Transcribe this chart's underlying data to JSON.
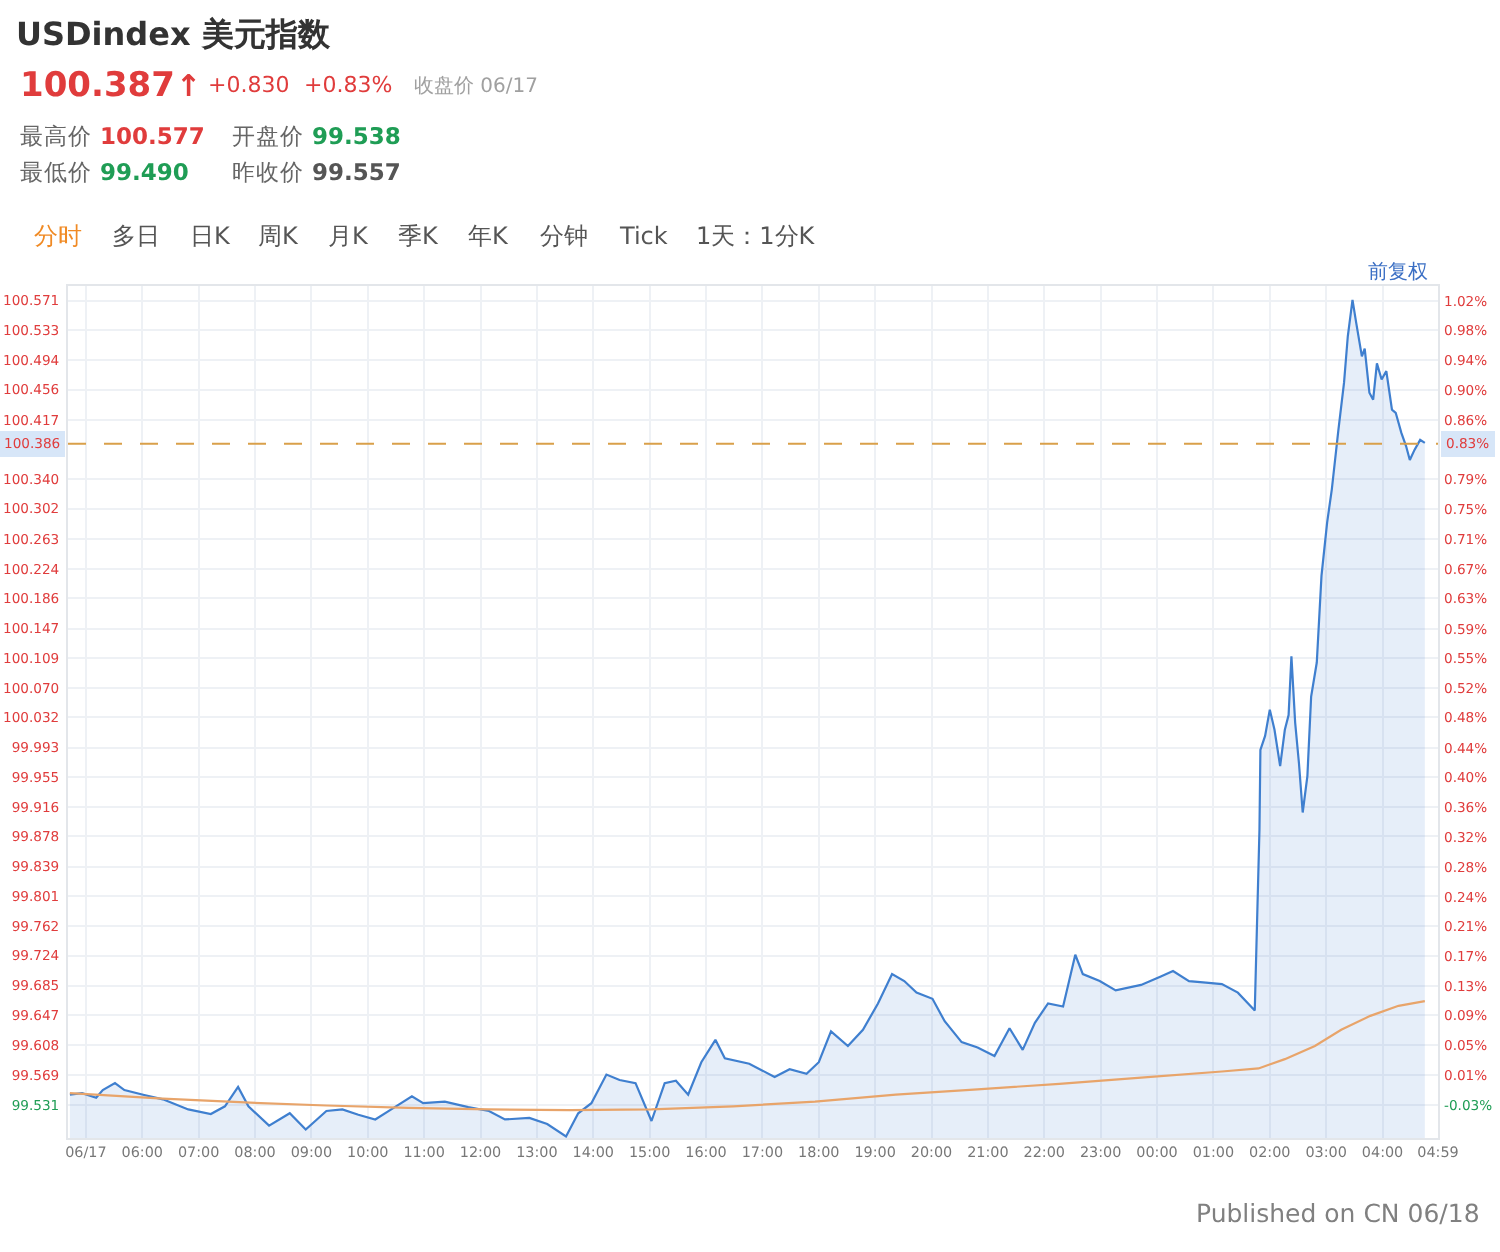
{
  "chart_data": {
    "type": "area",
    "title": "USDindex 美元指数",
    "series": [
      {
        "color": "#3f7fcf",
        "x": [
          "--06-17T04:43",
          "--06-17T04:56",
          "--06-17T05:11",
          "--06-17T05:18",
          "--06-17T05:31",
          "--06-17T05:41",
          "--06-17T06:01",
          "--06-17T06:22",
          "--06-17T06:49",
          "--06-17T07:13",
          "--06-17T07:28",
          "--06-17T07:42",
          "--06-17T07:53",
          "--06-17T08:15",
          "--06-17T08:37",
          "--06-17T08:54",
          "--06-17T09:16",
          "--06-17T09:33",
          "--06-17T09:50",
          "--06-17T10:08",
          "--06-17T10:25",
          "--06-17T10:47",
          "--06-17T10:59",
          "--06-17T11:22",
          "--06-17T11:47",
          "--06-17T12:09",
          "--06-17T12:26",
          "--06-17T12:52",
          "--06-17T13:11",
          "--06-17T13:31",
          "--06-17T13:44",
          "--06-17T13:58",
          "--06-17T14:14",
          "--06-17T14:28",
          "--06-17T14:45",
          "--06-17T15:02",
          "--06-17T15:16",
          "--06-17T15:28",
          "--06-17T15:41",
          "--06-17T15:55",
          "--06-17T16:10",
          "--06-17T16:20",
          "--06-17T16:46",
          "--06-17T17:13",
          "--06-17T17:29",
          "--06-17T17:47",
          "--06-17T18:00",
          "--06-17T18:13",
          "--06-17T18:31",
          "--06-17T18:47",
          "--06-17T19:03",
          "--06-17T19:18",
          "--06-17T19:31",
          "--06-17T19:44",
          "--06-17T20:01",
          "--06-17T20:14",
          "--06-17T20:32",
          "--06-17T20:49",
          "--06-17T21:07",
          "--06-17T21:23",
          "--06-17T21:37",
          "--06-17T21:50",
          "--06-17T22:04",
          "--06-17T22:20",
          "--06-17T22:33",
          "--06-17T22:41",
          "--06-17T22:59",
          "--06-17T23:16",
          "--06-17T23:43",
          "--06-18T00:04",
          "--06-18T00:17",
          "--06-18T00:34",
          "--06-18T00:52",
          "--06-18T01:09",
          "--06-18T01:26",
          "--06-18T01:44",
          "--06-18T01:49",
          "--06-18T01:50",
          "--06-18T01:55",
          "--06-18T02:00",
          "--06-18T02:05",
          "--06-18T02:11",
          "--06-18T02:16",
          "--06-18T02:20",
          "--06-18T02:23",
          "--06-18T02:27",
          "--06-18T02:31",
          "--06-18T02:35",
          "--06-18T02:40",
          "--06-18T02:44",
          "--06-18T02:50",
          "--06-18T02:55",
          "--06-18T03:01",
          "--06-18T03:06",
          "--06-18T03:13",
          "--06-18T03:19",
          "--06-18T03:23",
          "--06-18T03:28",
          "--06-18T03:32",
          "--06-18T03:38",
          "--06-18T03:41",
          "--06-18T03:46",
          "--06-18T03:50",
          "--06-18T03:54",
          "--06-18T03:59",
          "--06-18T04:04",
          "--06-18T04:10",
          "--06-18T04:14",
          "--06-18T04:20",
          "--06-18T04:25",
          "--06-18T04:29",
          "--06-18T04:34",
          "--06-18T04:40",
          "--06-18T04:45"
        ],
        "values": [
          99.544,
          99.546,
          99.54,
          99.55,
          99.559,
          99.55,
          99.544,
          99.538,
          99.525,
          99.519,
          99.529,
          99.554,
          99.529,
          99.504,
          99.52,
          99.499,
          99.523,
          99.525,
          99.518,
          99.512,
          99.525,
          99.542,
          99.533,
          99.535,
          99.528,
          99.523,
          99.512,
          99.514,
          99.506,
          99.49,
          99.52,
          99.533,
          99.57,
          99.563,
          99.559,
          99.51,
          99.559,
          99.562,
          99.544,
          99.586,
          99.615,
          99.591,
          99.584,
          99.567,
          99.577,
          99.571,
          99.586,
          99.626,
          99.607,
          99.628,
          99.662,
          99.7,
          99.691,
          99.676,
          99.668,
          99.639,
          99.612,
          99.605,
          99.594,
          99.63,
          99.602,
          99.637,
          99.662,
          99.658,
          99.725,
          99.7,
          99.691,
          99.679,
          99.686,
          99.697,
          99.704,
          99.691,
          99.689,
          99.687,
          99.676,
          99.653,
          99.887,
          99.99,
          100.008,
          100.042,
          100.016,
          99.969,
          100.016,
          100.035,
          100.111,
          100.025,
          99.973,
          99.909,
          99.956,
          100.059,
          100.103,
          100.215,
          100.284,
          100.327,
          100.404,
          100.465,
          100.525,
          100.572,
          100.542,
          100.499,
          100.509,
          100.452,
          100.443,
          100.49,
          100.469,
          100.48,
          100.43,
          100.426,
          100.4,
          100.383,
          100.365,
          100.378,
          100.391,
          100.387
        ]
      },
      {
        "type": "line",
        "color": "#e8a46a",
        "x": [
          "--06-17T04:43",
          "--06-17T06:22",
          "--06-17T07:49",
          "--06-17T09:16",
          "--06-17T10:43",
          "--06-17T12:09",
          "--06-17T13:35",
          "--06-17T15:02",
          "--06-17T16:29",
          "--06-17T17:56",
          "--06-17T19:22",
          "--06-17T20:49",
          "--06-17T22:16",
          "--06-17T23:43",
          "--06-18T01:09",
          "--06-18T01:48",
          "--06-18T02:16",
          "--06-18T02:48",
          "--06-18T03:16",
          "--06-18T03:47",
          "--06-18T04:17",
          "--06-18T04:45"
        ],
        "values": [
          99.546,
          99.539,
          99.534,
          99.53,
          99.527,
          99.525,
          99.524,
          99.525,
          99.529,
          99.535,
          99.544,
          99.551,
          99.558,
          99.566,
          99.574,
          99.578,
          99.59,
          99.607,
          99.628,
          99.646,
          99.659,
          99.665
        ]
      }
    ],
    "xlim": [
      "--06-17T04:41",
      "--06-18T04:59"
    ],
    "xticks": [
      {
        "value": "--06-17T05:00",
        "label": "06/17"
      },
      {
        "value": "--06-17T06:00",
        "label": "06:00"
      },
      {
        "value": "--06-17T07:00",
        "label": "07:00"
      },
      {
        "value": "--06-17T08:00",
        "label": "08:00"
      },
      {
        "value": "--06-17T09:00",
        "label": "09:00"
      },
      {
        "value": "--06-17T10:00",
        "label": "10:00"
      },
      {
        "value": "--06-17T11:00",
        "label": "11:00"
      },
      {
        "value": "--06-17T12:00",
        "label": "12:00"
      },
      {
        "value": "--06-17T13:00",
        "label": "13:00"
      },
      {
        "value": "--06-17T14:00",
        "label": "14:00"
      },
      {
        "value": "--06-17T15:00",
        "label": "15:00"
      },
      {
        "value": "--06-17T16:00",
        "label": "16:00"
      },
      {
        "value": "--06-17T17:00",
        "label": "17:00"
      },
      {
        "value": "--06-17T18:00",
        "label": "18:00"
      },
      {
        "value": "--06-17T19:00",
        "label": "19:00"
      },
      {
        "value": "--06-17T20:00",
        "label": "20:00"
      },
      {
        "value": "--06-17T21:00",
        "label": "21:00"
      },
      {
        "value": "--06-17T22:00",
        "label": "22:00"
      },
      {
        "value": "--06-17T23:00",
        "label": "23:00"
      },
      {
        "value": "--06-18T00:00",
        "label": "00:00"
      },
      {
        "value": "--06-18T01:00",
        "label": "01:00"
      },
      {
        "value": "--06-18T02:00",
        "label": "02:00"
      },
      {
        "value": "--06-18T03:00",
        "label": "03:00"
      },
      {
        "value": "--06-18T04:00",
        "label": "04:00"
      },
      {
        "value": "--06-18T04:59",
        "label": "04:59"
      }
    ],
    "ylim": [
      99.488,
      100.59
    ],
    "yticks": [
      100.571,
      100.533,
      100.494,
      100.456,
      100.417,
      {
        "value": 100.34,
        "label": "100.340"
      },
      100.302,
      100.263,
      100.224,
      100.186,
      100.147,
      100.109,
      {
        "value": 100.07,
        "label": "100.070"
      },
      100.032,
      99.993,
      99.955,
      99.916,
      99.878,
      99.839,
      99.801,
      99.762,
      99.724,
      99.685,
      99.647,
      99.608,
      99.569,
      99.531
    ],
    "y2lim": [
      -0.069,
      1.038
    ],
    "y2ticks": [
      {
        "value": 1.0185,
        "label": "1.02%"
      },
      {
        "value": 0.9803,
        "label": "0.98%"
      },
      {
        "value": 0.9412,
        "label": "0.94%"
      },
      {
        "value": 0.903,
        "label": "0.90%"
      },
      {
        "value": 0.8638,
        "label": "0.86%"
      },
      {
        "value": 0.7865,
        "label": "0.79%"
      },
      {
        "value": 0.7483,
        "label": "0.75%"
      },
      {
        "value": 0.7091,
        "label": "0.71%"
      },
      {
        "value": 0.67,
        "label": "0.67%"
      },
      {
        "value": 0.6318,
        "label": "0.63%"
      },
      {
        "value": 0.5926,
        "label": "0.59%"
      },
      {
        "value": 0.5545,
        "label": "0.55%"
      },
      {
        "value": 0.5153,
        "label": "0.52%"
      },
      {
        "value": 0.4771,
        "label": "0.48%"
      },
      {
        "value": 0.4379,
        "label": "0.44%"
      },
      {
        "value": 0.3998,
        "label": "0.40%"
      },
      {
        "value": 0.3606,
        "label": "0.36%"
      },
      {
        "value": 0.3224,
        "label": "0.32%"
      },
      {
        "value": 0.2833,
        "label": "0.28%"
      },
      {
        "value": 0.244,
        "label": "0.24%"
      },
      {
        "value": 0.2059,
        "label": "0.21%"
      },
      {
        "value": 0.1677,
        "label": "0.17%"
      },
      {
        "value": 0.1286,
        "label": "0.13%"
      },
      {
        "value": 0.0904,
        "label": "0.09%"
      },
      {
        "value": 0.0512,
        "label": "0.05%"
      },
      {
        "value": 0.0121,
        "label": "0.01%"
      },
      {
        "value": -0.0261,
        "label": "-0.03%"
      }
    ],
    "ref_lines": [
      {
        "axis": "y",
        "value": 100.386,
        "label": "100.386",
        "color": "#d9a04a",
        "line_style": "dashed"
      }
    ],
    "grid": true,
    "annotations": [
      "100.387",
      "↑",
      "+0.830",
      "+0.83%",
      "收盘价 06/17",
      "最高价",
      "100.577",
      "开盘价",
      "99.538",
      "最低价",
      "99.490",
      "昨收价",
      "99.557",
      "分时",
      "多日",
      "日K",
      "周K",
      "月K",
      "季K",
      "年K",
      "分钟",
      "Tick",
      "1天：1分K",
      "前复权",
      "Published on CN 06/18",
      {
        "text": "0.83%",
        "y": 100.386
      }
    ]
  }
}
